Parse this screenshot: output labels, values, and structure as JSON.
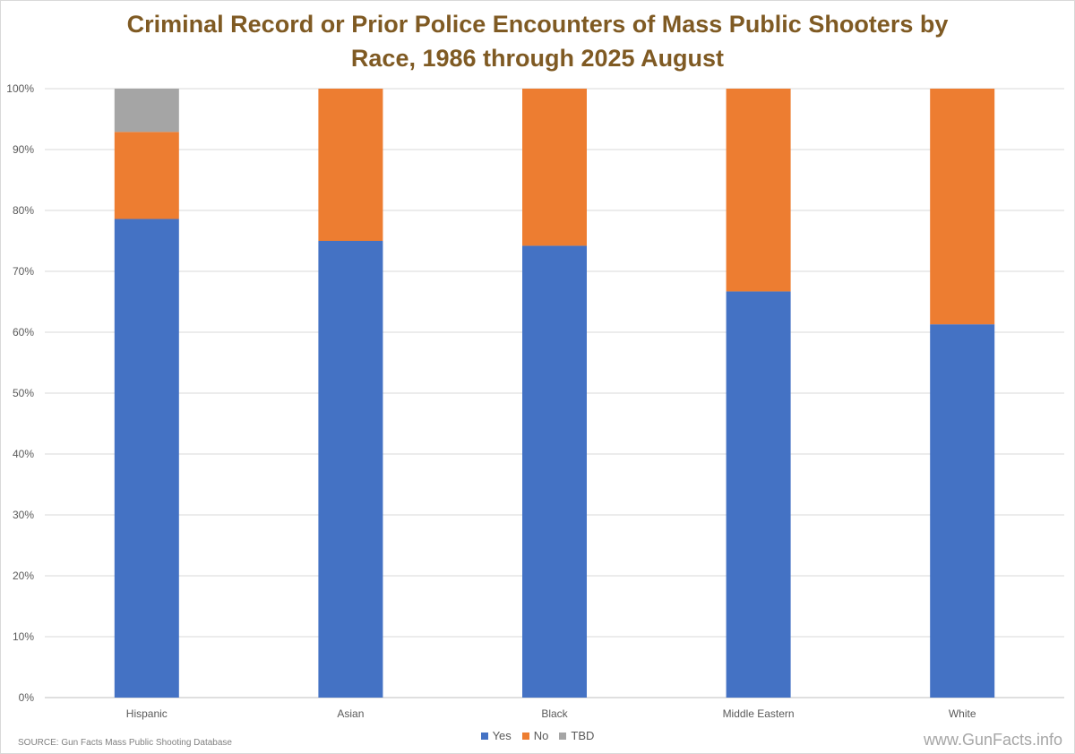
{
  "chart_data": {
    "type": "bar",
    "stacked": true,
    "title": "Criminal  Record or Prior Police Encounters of Mass Public Shooters by\nRace, 1986 through 2025 August",
    "categories": [
      "Hispanic",
      "Asian",
      "Black",
      "Middle Eastern",
      "White"
    ],
    "series": [
      {
        "name": "Yes",
        "color": "#4472c4",
        "values": [
          78.6,
          75.0,
          74.2,
          66.7,
          61.3
        ]
      },
      {
        "name": "No",
        "color": "#ed7d31",
        "values": [
          14.3,
          25.0,
          25.8,
          33.3,
          38.7
        ]
      },
      {
        "name": "TBD",
        "color": "#a5a5a5",
        "values": [
          7.1,
          0,
          0,
          0,
          0
        ]
      }
    ],
    "yticks": [
      "0%",
      "10%",
      "20%",
      "30%",
      "40%",
      "50%",
      "60%",
      "70%",
      "80%",
      "90%",
      "100%"
    ],
    "ylim": [
      0,
      100
    ],
    "grid": true,
    "legend_position": "bottom-center"
  },
  "source": "SOURCE:  Gun Facts Mass Public Shooting Database",
  "watermark": "www.GunFacts.info"
}
